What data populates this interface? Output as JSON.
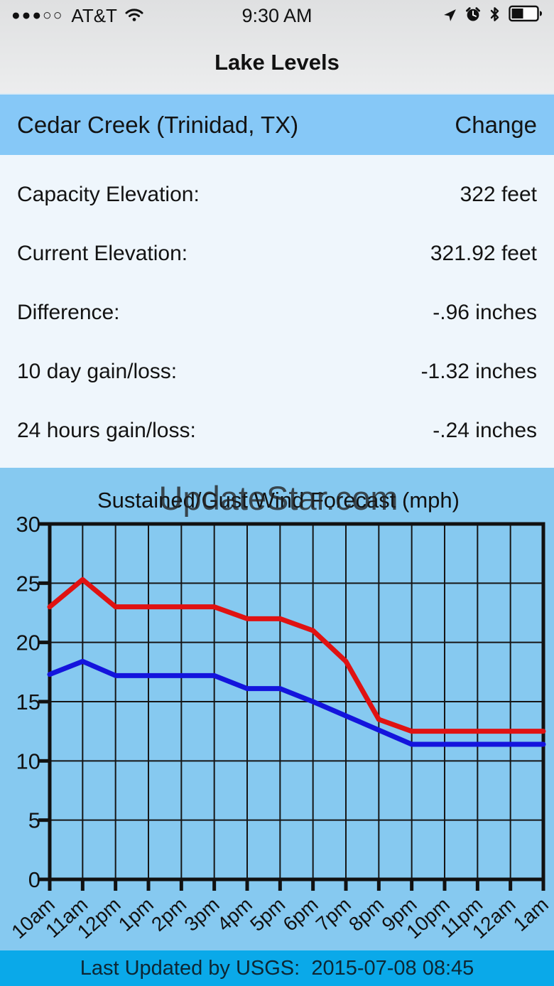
{
  "status_bar": {
    "signal_dots": "●●●○○",
    "carrier": "AT&T",
    "time": "9:30 AM"
  },
  "nav": {
    "title": "Lake Levels"
  },
  "station": {
    "name": "Cedar Creek (Trinidad, TX)",
    "change_label": "Change"
  },
  "info_rows": [
    {
      "label": "Capacity Elevation:",
      "value": "322 feet"
    },
    {
      "label": "Current Elevation:",
      "value": "321.92 feet"
    },
    {
      "label": "Difference:",
      "value": "-.96 inches"
    },
    {
      "label": "10 day gain/loss:",
      "value": "-1.32 inches"
    },
    {
      "label": "24 hours gain/loss:",
      "value": "-.24 inches"
    }
  ],
  "watermark": "UpdateStar.com",
  "chart_data": {
    "type": "line",
    "title": "Sustained/Gust Wind Forecast (mph)",
    "categories": [
      "10am",
      "11am",
      "12pm",
      "1pm",
      "2pm",
      "3pm",
      "4pm",
      "5pm",
      "6pm",
      "7pm",
      "8pm",
      "9pm",
      "10pm",
      "11pm",
      "12am",
      "1am"
    ],
    "series": [
      {
        "name": "Gust",
        "color": "#e01212",
        "values": [
          23,
          25.3,
          23,
          23,
          23,
          23,
          22,
          22,
          21,
          18.4,
          13.5,
          12.5,
          12.5,
          12.5,
          12.5,
          12.5
        ]
      },
      {
        "name": "Sustained",
        "color": "#1414dd",
        "values": [
          17.3,
          18.4,
          17.2,
          17.2,
          17.2,
          17.2,
          16.1,
          16.1,
          15,
          13.8,
          12.6,
          11.4,
          11.4,
          11.4,
          11.4,
          11.4
        ]
      }
    ],
    "xlabel": "",
    "ylabel": "",
    "ylim": [
      0,
      30
    ],
    "ytick_step": 5,
    "grid": true,
    "legend": "none"
  },
  "footer": {
    "text": "Last Updated by USGS:  2015-07-08 08:45"
  },
  "colors": {
    "station_bar_bg": "#86c8f7",
    "info_bg": "#eff6fc",
    "chart_bg": "#86c9f0",
    "footer_bg": "#0aa9e9",
    "gust_line": "#e01212",
    "sustained_line": "#1414dd"
  }
}
